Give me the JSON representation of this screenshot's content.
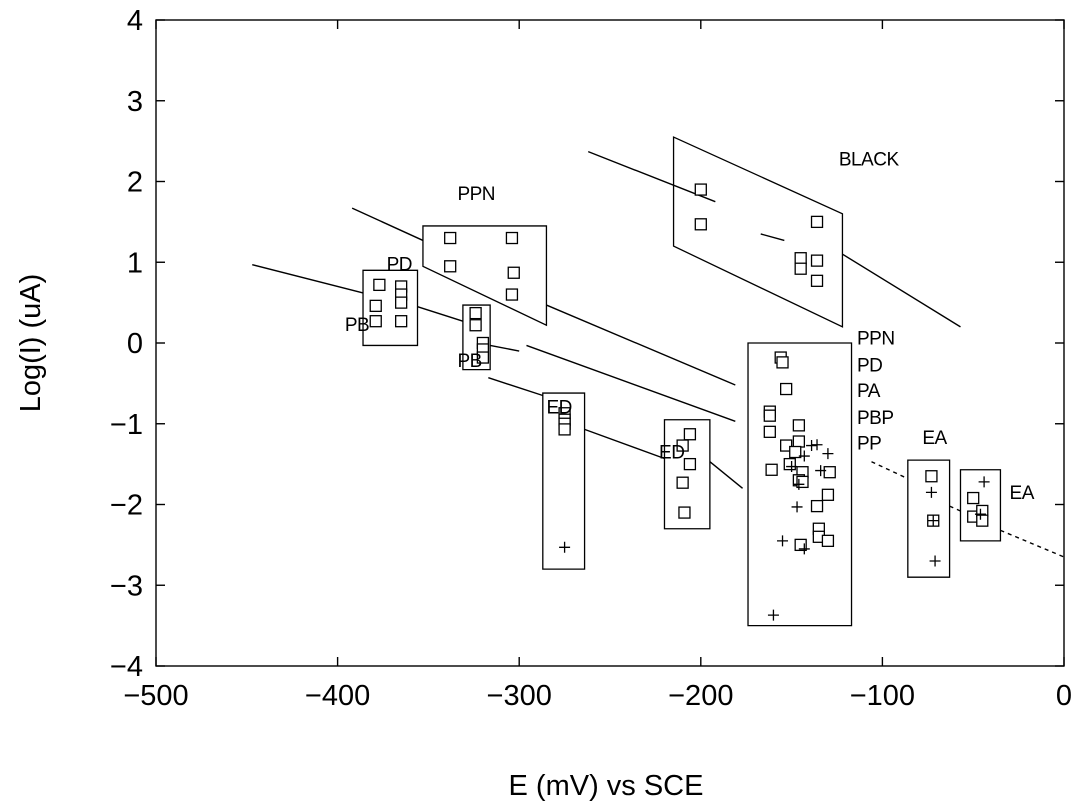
{
  "chart_data": {
    "type": "scatter",
    "title": "",
    "xlabel": "E (mV) vs SCE",
    "ylabel": "Log(I) (uA)",
    "xlim": [
      -500,
      0
    ],
    "ylim": [
      -4,
      4
    ],
    "x_ticks": [
      -500,
      -400,
      -300,
      -200,
      -100,
      0
    ],
    "y_ticks": [
      4,
      3,
      2,
      1,
      0,
      -1,
      -2,
      -3,
      -4
    ],
    "x_tick_labels": [
      "−500",
      "−400",
      "−300",
      "−200",
      "−100",
      "0"
    ],
    "y_tick_labels": [
      "4",
      "3",
      "2",
      "1",
      "0",
      "−1",
      "−2",
      "−3",
      "−4"
    ],
    "grid": false,
    "series": [
      {
        "marker": "square",
        "points": [
          [
            -200,
            1.9
          ],
          [
            -200,
            1.47
          ],
          [
            -136,
            1.5
          ],
          [
            -145,
            1.05
          ],
          [
            -145,
            0.92
          ],
          [
            -136,
            1.02
          ],
          [
            -136,
            0.77
          ],
          [
            -338,
            1.3
          ],
          [
            -304,
            1.3
          ],
          [
            -338,
            0.95
          ],
          [
            -303,
            0.87
          ],
          [
            -304,
            0.6
          ],
          [
            -377,
            0.72
          ],
          [
            -365,
            0.7
          ],
          [
            -365,
            0.6
          ],
          [
            -379,
            0.46
          ],
          [
            -365,
            0.5
          ],
          [
            -379,
            0.27
          ],
          [
            -365,
            0.27
          ],
          [
            -324,
            0.37
          ],
          [
            -324,
            0.22
          ],
          [
            -320,
            0.0
          ],
          [
            -320,
            -0.08
          ],
          [
            -320,
            -0.18
          ],
          [
            -275,
            -0.87
          ],
          [
            -275,
            -0.95
          ],
          [
            -275,
            -1.0
          ],
          [
            -275,
            -1.07
          ],
          [
            -206,
            -1.13
          ],
          [
            -210,
            -1.27
          ],
          [
            -206,
            -1.5
          ],
          [
            -210,
            -1.73
          ],
          [
            -209,
            -2.1
          ],
          [
            -156,
            -0.18
          ],
          [
            -155,
            -0.24
          ],
          [
            -153,
            -0.57
          ],
          [
            -162,
            -0.85
          ],
          [
            -162,
            -0.9
          ],
          [
            -162,
            -1.1
          ],
          [
            -146,
            -1.02
          ],
          [
            -153,
            -1.27
          ],
          [
            -146,
            -1.22
          ],
          [
            -148,
            -1.35
          ],
          [
            -151,
            -1.5
          ],
          [
            -161,
            -1.57
          ],
          [
            -144,
            -1.6
          ],
          [
            -146,
            -1.7
          ],
          [
            -144,
            -1.72
          ],
          [
            -129,
            -1.6
          ],
          [
            -130,
            -1.88
          ],
          [
            -136,
            -2.02
          ],
          [
            -135,
            -2.3
          ],
          [
            -135,
            -2.4
          ],
          [
            -130,
            -2.45
          ],
          [
            -145,
            -2.5
          ],
          [
            -73,
            -1.65
          ],
          [
            -72,
            -2.2
          ],
          [
            -50,
            -1.92
          ],
          [
            -50,
            -2.15
          ],
          [
            -45,
            -2.08
          ],
          [
            -45,
            -2.2
          ]
        ]
      },
      {
        "marker": "plus",
        "points": [
          [
            -275,
            -2.53
          ],
          [
            -139,
            -1.27
          ],
          [
            -136,
            -1.26
          ],
          [
            -143,
            -1.4
          ],
          [
            -130,
            -1.37
          ],
          [
            -150,
            -1.53
          ],
          [
            -134,
            -1.58
          ],
          [
            -146,
            -1.75
          ],
          [
            -147,
            -2.03
          ],
          [
            -155,
            -2.45
          ],
          [
            -143,
            -2.55
          ],
          [
            -160,
            -3.37
          ],
          [
            -73,
            -1.85
          ],
          [
            -72,
            -2.2
          ],
          [
            -71,
            -2.7
          ],
          [
            -44,
            -1.72
          ],
          [
            -46,
            -2.12
          ]
        ]
      }
    ],
    "regions": [
      {
        "label": "BLACK",
        "label_at": [
          -124,
          2.2
        ],
        "polygon": [
          [
            -215,
            2.55
          ],
          [
            -122,
            1.6
          ],
          [
            -122,
            0.2
          ],
          [
            -215,
            1.2
          ]
        ]
      },
      {
        "label": "PPN",
        "label_at": [
          -334,
          1.77
        ],
        "polygon": [
          [
            -353,
            1.45
          ],
          [
            -285,
            1.45
          ],
          [
            -285,
            0.22
          ],
          [
            -353,
            0.95
          ]
        ]
      },
      {
        "label": "PD",
        "label_at": [
          -373,
          0.9
        ],
        "polygon": [
          [
            -386,
            0.9
          ],
          [
            -356,
            0.9
          ],
          [
            -356,
            -0.03
          ],
          [
            -386,
            -0.03
          ]
        ]
      },
      {
        "label": "PB",
        "label_at": [
          -396,
          0.15
        ],
        "polygon": []
      },
      {
        "label": "PB",
        "label_at": [
          -334,
          -0.3
        ],
        "polygon": [
          [
            -331,
            0.47
          ],
          [
            -316,
            0.47
          ],
          [
            -316,
            -0.33
          ],
          [
            -331,
            -0.33
          ]
        ]
      },
      {
        "label": "ED",
        "label_at": [
          -285,
          -0.87
        ],
        "polygon": [
          [
            -287,
            -0.62
          ],
          [
            -264,
            -0.62
          ],
          [
            -264,
            -2.8
          ],
          [
            -287,
            -2.8
          ]
        ]
      },
      {
        "label": "ED",
        "label_at": [
          -223,
          -1.43
        ],
        "polygon": [
          [
            -220,
            -0.95
          ],
          [
            -195,
            -0.95
          ],
          [
            -195,
            -2.3
          ],
          [
            -220,
            -2.3
          ]
        ]
      },
      {
        "label": "PPN",
        "label_at": [
          -114,
          -0.02
        ],
        "polygon": []
      },
      {
        "label": "PD",
        "label_at": [
          -114,
          -0.35
        ],
        "polygon": []
      },
      {
        "label": "PA",
        "label_at": [
          -114,
          -0.67
        ],
        "polygon": []
      },
      {
        "label": "PBP",
        "label_at": [
          -114,
          -1.0
        ],
        "polygon": []
      },
      {
        "label": "PP",
        "label_at": [
          -114,
          -1.32
        ],
        "polygon": [
          [
            -174,
            0.0
          ],
          [
            -117,
            0.0
          ],
          [
            -117,
            -3.5
          ],
          [
            -174,
            -3.5
          ]
        ]
      },
      {
        "label": "EA",
        "label_at": [
          -78,
          -1.25
        ],
        "polygon": [
          [
            -86,
            -1.45
          ],
          [
            -63,
            -1.45
          ],
          [
            -63,
            -2.9
          ],
          [
            -86,
            -2.9
          ]
        ]
      },
      {
        "label": "EA",
        "label_at": [
          -30,
          -1.93
        ],
        "polygon": [
          [
            -57,
            -1.57
          ],
          [
            -35,
            -1.57
          ],
          [
            -35,
            -2.45
          ],
          [
            -57,
            -2.45
          ]
        ]
      }
    ],
    "lines": [
      {
        "style": "solid",
        "points": [
          [
            -262,
            2.37
          ],
          [
            -192,
            1.75
          ]
        ]
      },
      {
        "style": "solid",
        "points": [
          [
            -167,
            1.35
          ],
          [
            -154,
            1.27
          ]
        ]
      },
      {
        "style": "solid",
        "points": [
          [
            -122,
            1.1
          ],
          [
            -57,
            0.2
          ]
        ]
      },
      {
        "style": "solid",
        "points": [
          [
            -392,
            1.67
          ],
          [
            -353,
            1.27
          ]
        ]
      },
      {
        "style": "solid",
        "points": [
          [
            -285,
            0.47
          ],
          [
            -181,
            -0.52
          ]
        ]
      },
      {
        "style": "solid",
        "points": [
          [
            -447,
            0.97
          ],
          [
            -386,
            0.62
          ]
        ]
      },
      {
        "style": "solid",
        "points": [
          [
            -356,
            0.45
          ],
          [
            -331,
            0.27
          ]
        ]
      },
      {
        "style": "solid",
        "points": [
          [
            -316,
            -0.03
          ],
          [
            -300,
            -0.1
          ]
        ]
      },
      {
        "style": "solid",
        "points": [
          [
            -296,
            -0.03
          ],
          [
            -181,
            -0.97
          ]
        ]
      },
      {
        "style": "solid",
        "points": [
          [
            -317,
            -0.43
          ],
          [
            -287,
            -0.65
          ]
        ]
      },
      {
        "style": "solid",
        "points": [
          [
            -264,
            -1.07
          ],
          [
            -220,
            -1.43
          ]
        ]
      },
      {
        "style": "solid",
        "points": [
          [
            -195,
            -1.47
          ],
          [
            -177,
            -1.8
          ]
        ]
      },
      {
        "style": "dashed",
        "points": [
          [
            -106,
            -1.47
          ],
          [
            -86,
            -1.68
          ]
        ]
      },
      {
        "style": "dashed",
        "points": [
          [
            -63,
            -2.02
          ],
          [
            -57,
            -2.08
          ]
        ]
      },
      {
        "style": "dashed",
        "points": [
          [
            -35,
            -2.32
          ],
          [
            0,
            -2.65
          ]
        ]
      }
    ]
  }
}
